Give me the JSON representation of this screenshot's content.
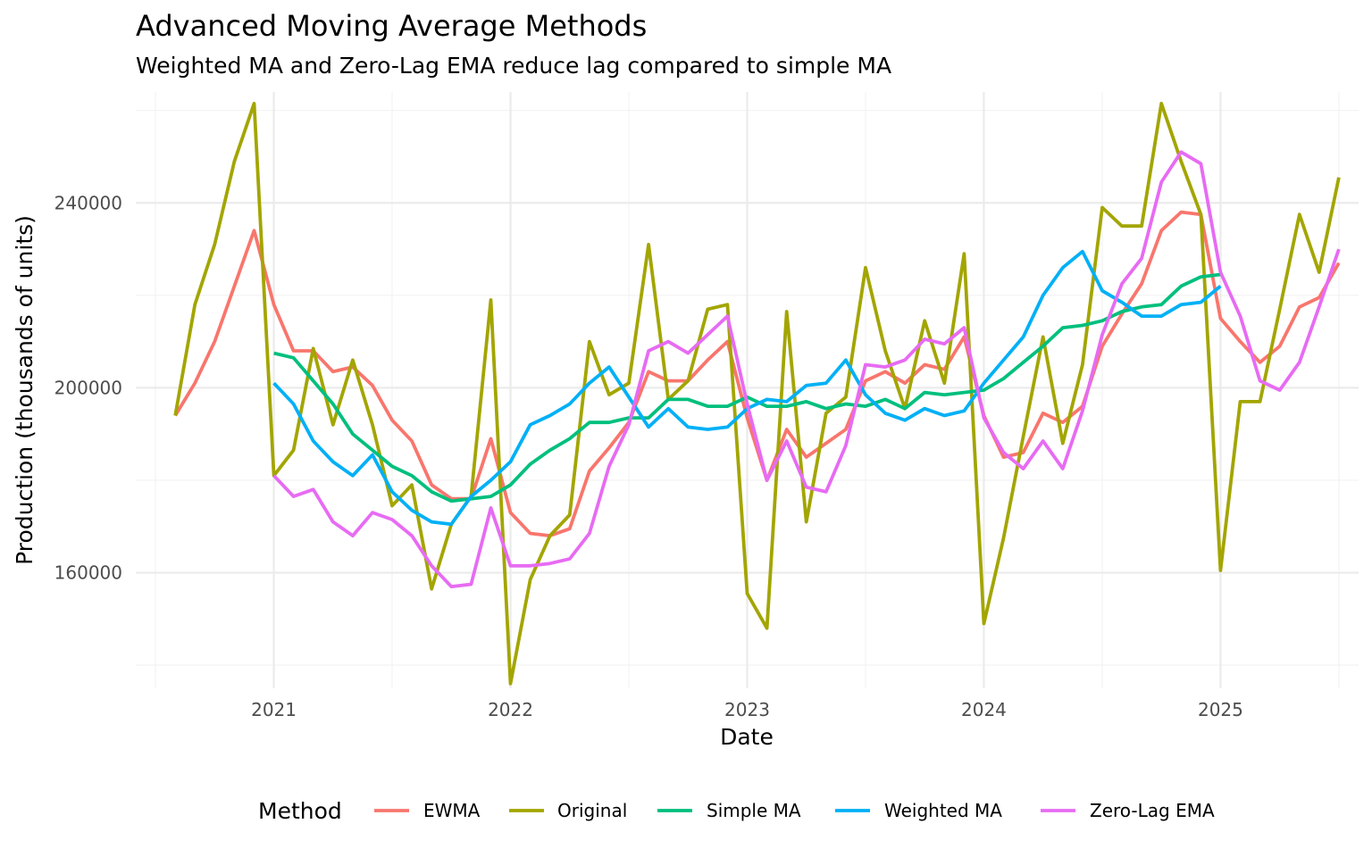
{
  "chart_data": {
    "type": "line",
    "title": "Advanced Moving Average Methods",
    "subtitle": "Weighted MA and Zero-Lag EMA reduce lag compared to simple MA",
    "xlabel": "Date",
    "ylabel": "Production (thousands of units)",
    "x_ticks": [
      "2021",
      "2022",
      "2023",
      "2024",
      "2025"
    ],
    "y_ticks": [
      "160000",
      "200000",
      "240000"
    ],
    "xlim": [
      "2020-06",
      "2025-08"
    ],
    "ylim": [
      135000,
      264000
    ],
    "grid": true,
    "legend": {
      "title": "Method",
      "position": "bottom"
    },
    "x": [
      "2020-08",
      "2020-09",
      "2020-10",
      "2020-11",
      "2020-12",
      "2021-01",
      "2021-02",
      "2021-03",
      "2021-04",
      "2021-05",
      "2021-06",
      "2021-07",
      "2021-08",
      "2021-09",
      "2021-10",
      "2021-11",
      "2021-12",
      "2022-01",
      "2022-02",
      "2022-03",
      "2022-04",
      "2022-05",
      "2022-06",
      "2022-07",
      "2022-08",
      "2022-09",
      "2022-10",
      "2022-11",
      "2022-12",
      "2023-01",
      "2023-02",
      "2023-03",
      "2023-04",
      "2023-05",
      "2023-06",
      "2023-07",
      "2023-08",
      "2023-09",
      "2023-10",
      "2023-11",
      "2023-12",
      "2024-01",
      "2024-02",
      "2024-03",
      "2024-04",
      "2024-05",
      "2024-06",
      "2024-07",
      "2024-08",
      "2024-09",
      "2024-10",
      "2024-11",
      "2024-12",
      "2025-01",
      "2025-02",
      "2025-03",
      "2025-04",
      "2025-05",
      "2025-06",
      "2025-07"
    ],
    "series": [
      {
        "name": "EWMA",
        "color": "#F8766D",
        "values": [
          194000,
          201000,
          210000,
          222000,
          234000,
          218000,
          208000,
          208000,
          203500,
          204500,
          200500,
          193000,
          188500,
          179000,
          176000,
          176000,
          189000,
          173000,
          168500,
          168000,
          169500,
          182000,
          187000,
          192500,
          203500,
          201500,
          201500,
          206000,
          210000,
          193500,
          180000,
          191000,
          185000,
          188000,
          191000,
          201500,
          203500,
          201000,
          205000,
          204000,
          211000,
          194000,
          185000,
          186000,
          194500,
          192500,
          196000,
          209000,
          216000,
          222500,
          234000,
          238000,
          237500,
          215000,
          210000,
          205500,
          209000,
          217500,
          219500,
          227000
        ]
      },
      {
        "name": "Original",
        "color": "#A3A500",
        "values": [
          194000,
          218000,
          231000,
          249000,
          261500,
          181000,
          186500,
          208500,
          192000,
          206000,
          192000,
          174500,
          179000,
          156500,
          170500,
          176500,
          219000,
          136000,
          158500,
          168000,
          172500,
          210000,
          198500,
          201000,
          231000,
          197500,
          201500,
          217000,
          218000,
          155500,
          148000,
          216500,
          171000,
          194500,
          198000,
          226000,
          208000,
          195500,
          214500,
          201000,
          229000,
          149000,
          167500,
          189500,
          211000,
          188000,
          205000,
          239000,
          235000,
          235000,
          261500,
          249000,
          237500,
          160500,
          197000,
          197000,
          217000,
          237500,
          225000,
          245500
        ]
      },
      {
        "name": "Simple MA",
        "color": "#00BF7D",
        "values": [
          null,
          null,
          null,
          null,
          null,
          207500,
          206500,
          201500,
          196500,
          190000,
          186500,
          183000,
          181000,
          177500,
          175500,
          176000,
          176500,
          179000,
          183500,
          186500,
          189000,
          192500,
          192500,
          193500,
          193500,
          197500,
          197500,
          196000,
          196000,
          198000,
          196000,
          196000,
          197000,
          195500,
          196500,
          196000,
          197500,
          195500,
          199000,
          198500,
          199000,
          199500,
          202000,
          205500,
          209000,
          213000,
          213500,
          214500,
          216500,
          217500,
          218000,
          222000,
          224000,
          224500,
          null,
          null,
          null,
          null,
          null,
          null
        ]
      },
      {
        "name": "Weighted MA",
        "color": "#00B0F6",
        "values": [
          null,
          null,
          null,
          null,
          null,
          201000,
          196500,
          188500,
          184000,
          181000,
          185500,
          177500,
          173500,
          171000,
          170500,
          176500,
          180000,
          184000,
          192000,
          194000,
          196500,
          201000,
          204500,
          198000,
          191500,
          195500,
          191500,
          191000,
          191500,
          195500,
          197500,
          197000,
          200500,
          201000,
          206000,
          198500,
          194500,
          193000,
          195500,
          194000,
          195000,
          201000,
          206000,
          211000,
          220000,
          226000,
          229500,
          221000,
          218500,
          215500,
          215500,
          218000,
          218500,
          222000,
          null,
          null,
          null,
          null,
          null,
          null
        ]
      },
      {
        "name": "Zero-Lag EMA",
        "color": "#E76BF3",
        "values": [
          null,
          null,
          null,
          null,
          null,
          181000,
          176500,
          178000,
          171000,
          168000,
          173000,
          171500,
          168000,
          161500,
          157000,
          157500,
          174000,
          161500,
          161500,
          162000,
          163000,
          168500,
          183000,
          192000,
          208000,
          210000,
          207500,
          211500,
          215500,
          196500,
          180000,
          188500,
          178500,
          177500,
          187500,
          205000,
          204500,
          206000,
          210500,
          209500,
          213000,
          193500,
          186000,
          182500,
          188500,
          182500,
          195000,
          211500,
          222500,
          228000,
          244500,
          251000,
          248500,
          225000,
          215500,
          201500,
          199500,
          205500,
          217500,
          230000
        ]
      }
    ]
  }
}
